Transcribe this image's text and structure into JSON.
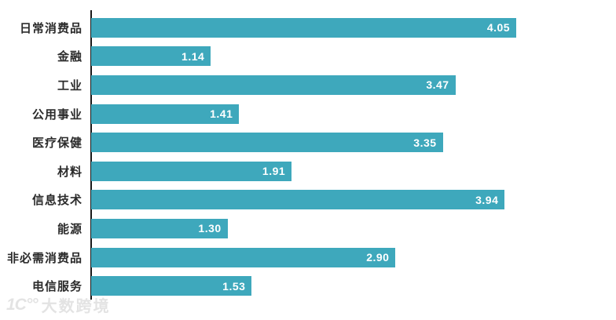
{
  "chart_data": {
    "type": "bar",
    "orientation": "horizontal",
    "title": "",
    "xlabel": "",
    "ylabel": "",
    "categories": [
      "日常消费品",
      "金融",
      "工业",
      "公用事业",
      "医疗保健",
      "材料",
      "信息技术",
      "能源",
      "非必需消费品",
      "电信服务"
    ],
    "values": [
      4.05,
      1.14,
      3.47,
      1.41,
      3.35,
      1.91,
      3.94,
      1.3,
      2.9,
      1.53
    ],
    "value_labels": [
      "4.05",
      "1.14",
      "3.47",
      "1.41",
      "3.35",
      "1.91",
      "3.94",
      "1.30",
      "2.90",
      "1.53"
    ],
    "xlim": [
      0,
      5.0
    ],
    "grid": false,
    "legend": false,
    "bar_color": "#3EA8BC",
    "value_label_color": "#FFFFFF",
    "category_label_color": "#2B2B2B",
    "axis_line_color": "#1A1A1A"
  },
  "watermark": {
    "logo_glyph": "1C°°",
    "text": "大数跨境",
    "color": "#E3E3E3"
  }
}
